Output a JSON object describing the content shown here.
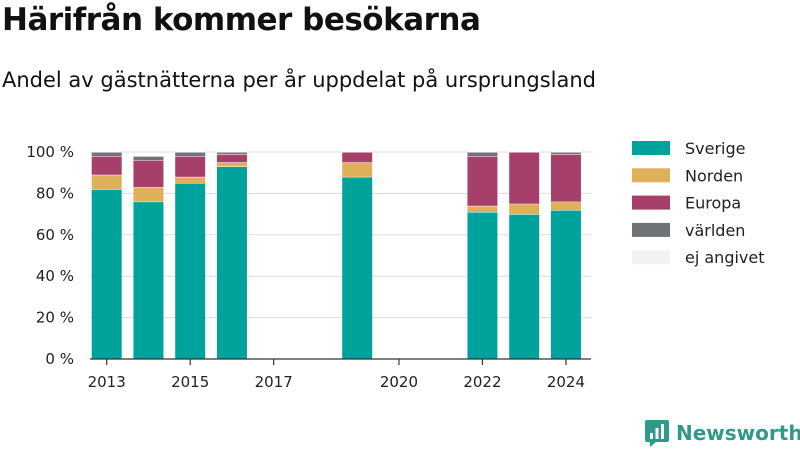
{
  "title": "Härifrån kommer besökarna",
  "subtitle": "Andel av gästnätterna per år uppdelat på ursprungsland",
  "brand": {
    "name": "Newsworthy",
    "icon": "newsworthy-logo-icon",
    "color": "#2f9a8b"
  },
  "chart_data": {
    "type": "bar",
    "stacked": true,
    "title": "Härifrån kommer besökarna",
    "subtitle": "Andel av gästnätterna per år uppdelat på ursprungsland",
    "xlabel": "",
    "ylabel": "",
    "x": [
      2013,
      2014,
      2015,
      2016,
      2019,
      2022,
      2023,
      2024
    ],
    "xticks": [
      "2013",
      "2015",
      "2017",
      "2020",
      "2022",
      "2024"
    ],
    "xlim": [
      2012.6,
      2024.6
    ],
    "ylim": [
      0,
      100
    ],
    "yticks": [
      "0 %",
      "20 %",
      "40 %",
      "60 %",
      "80 %",
      "100 %"
    ],
    "grid": true,
    "legend": "right",
    "series": [
      {
        "name": "Sverige",
        "color": "#00a39b",
        "values": [
          82,
          76,
          85,
          93,
          88,
          71,
          70,
          72
        ]
      },
      {
        "name": "Norden",
        "color": "#deb05a",
        "values": [
          7,
          7,
          3,
          2,
          7,
          3,
          5,
          4
        ]
      },
      {
        "name": "Europa",
        "color": "#a73f6b",
        "values": [
          9,
          13,
          10,
          4,
          5,
          24,
          25,
          23
        ]
      },
      {
        "name": "världen",
        "color": "#707378",
        "values": [
          2,
          2,
          2,
          1,
          0,
          2,
          0,
          1
        ]
      },
      {
        "name": "ej angivet",
        "color": "#f2f2f2",
        "values": [
          0,
          0,
          0,
          0,
          0,
          0,
          0,
          0
        ]
      }
    ]
  }
}
